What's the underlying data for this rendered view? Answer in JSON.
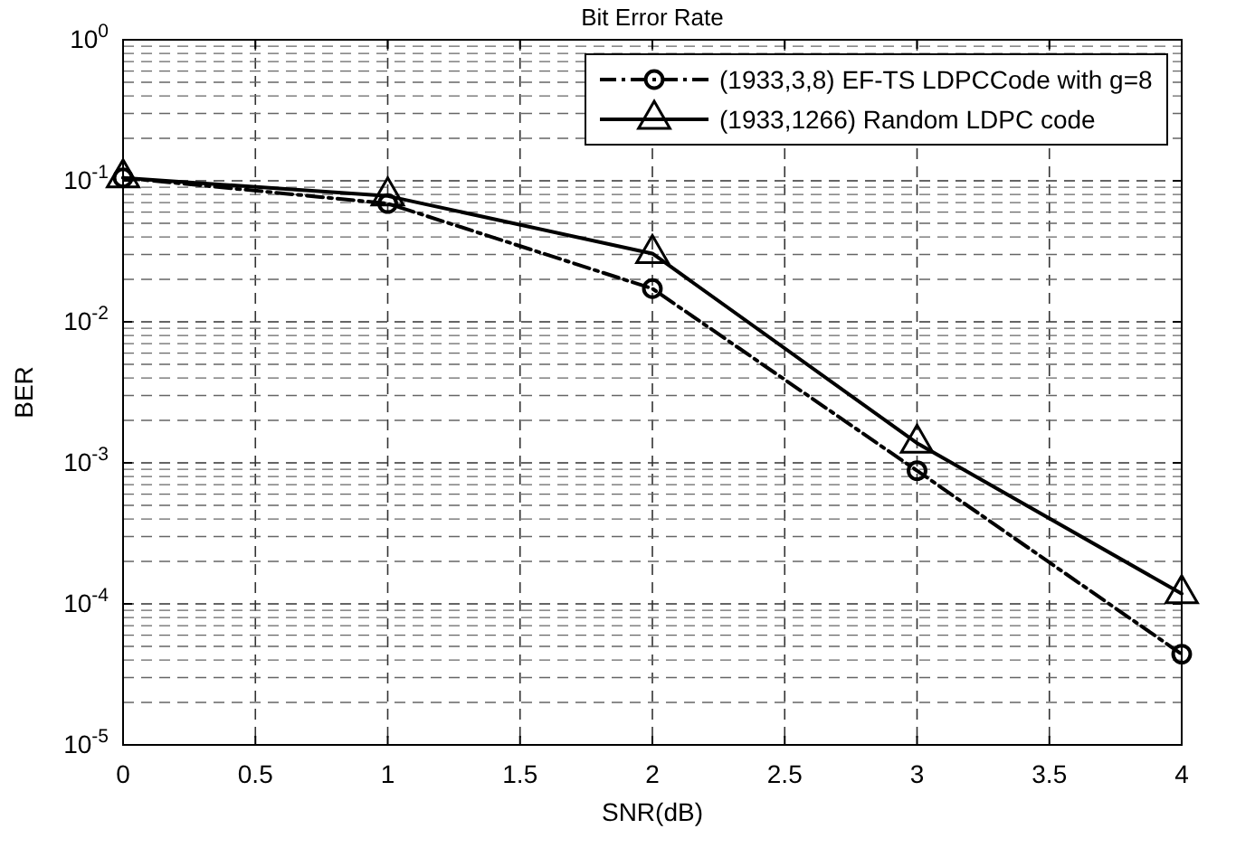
{
  "chart_data": {
    "type": "line",
    "title": "Bit Error Rate",
    "xlabel": "SNR(dB)",
    "ylabel": "BER",
    "x": [
      0,
      1,
      2,
      3,
      4
    ],
    "series": [
      {
        "name": "(1933,3,8) EF-TS LDPCCode with g=8",
        "color": "#000000",
        "marker": "circle",
        "line_style": "dashed",
        "values": [
          0.105,
          0.069,
          0.0172,
          0.00088,
          4.4e-05
        ]
      },
      {
        "name": "(1933,1266) Random LDPC code",
        "color": "#000000",
        "marker": "triangle",
        "line_style": "solid",
        "values": [
          0.105,
          0.078,
          0.0305,
          0.00138,
          0.000118
        ]
      }
    ],
    "xlim": [
      0,
      4
    ],
    "xticks": [
      0,
      0.5,
      1,
      1.5,
      2,
      2.5,
      3,
      3.5,
      4
    ],
    "ylim": [
      1e-05,
      1
    ],
    "yticks": [
      {
        "value": 1e-05,
        "label": "10$^{-5}$"
      },
      {
        "value": 0.0001,
        "label": "10$^{-4}$"
      },
      {
        "value": 0.001,
        "label": "10$^{-3}$"
      },
      {
        "value": 0.01,
        "label": "10$^{-2}$"
      },
      {
        "value": 0.1,
        "label": "10$^{-1}$"
      },
      {
        "value": 1,
        "label": "10$^{0}$"
      }
    ],
    "log": true,
    "grid": true,
    "legend": "top right"
  }
}
